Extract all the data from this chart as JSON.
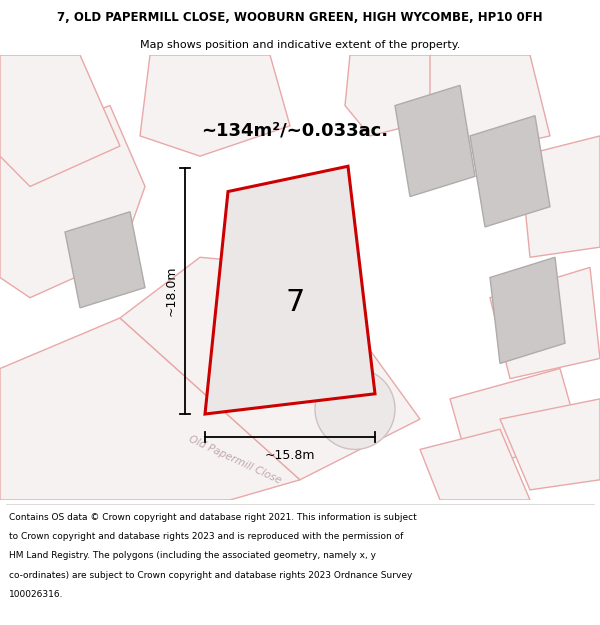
{
  "title_line1": "7, OLD PAPERMILL CLOSE, WOOBURN GREEN, HIGH WYCOMBE, HP10 0FH",
  "title_line2": "Map shows position and indicative extent of the property.",
  "area_label": "~134m²/~0.033ac.",
  "plot_number": "7",
  "dim_width": "~15.8m",
  "dim_height": "~18.0m",
  "road_label": "Old Papermill Close",
  "footer_lines": [
    "Contains OS data © Crown copyright and database right 2021. This information is subject",
    "to Crown copyright and database rights 2023 and is reproduced with the permission of",
    "HM Land Registry. The polygons (including the associated geometry, namely x, y",
    "co-ordinates) are subject to Crown copyright and database rights 2023 Ordnance Survey",
    "100026316."
  ],
  "map_bg": "#f7f2f2",
  "plot_fill": "#ebe7e7",
  "plot_border": "#cc0000",
  "pink_edge": "#e8a8a8",
  "pink_fill": "#f7f2f2",
  "gray_fill": "#ccc8c8",
  "gray_edge": "#b0abab",
  "title_fontsize": 8.5,
  "subtitle_fontsize": 8.0,
  "area_fontsize": 13.0,
  "footer_fontsize": 6.5
}
